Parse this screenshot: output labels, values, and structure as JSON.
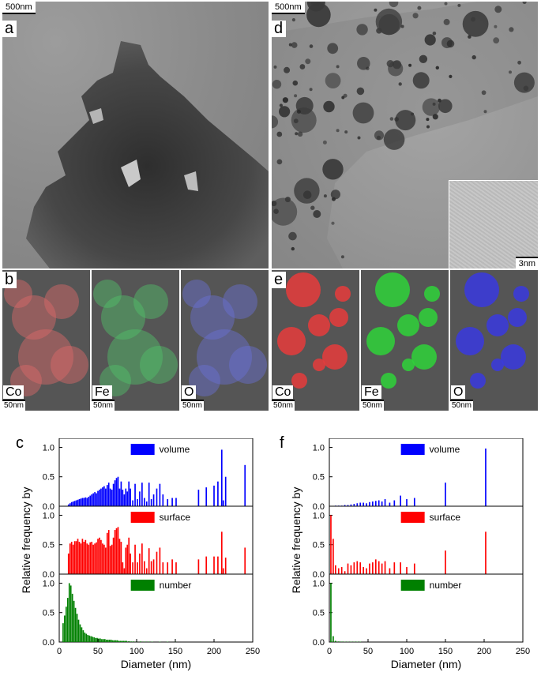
{
  "panels": {
    "a": {
      "letter": "a",
      "scale": "500nm"
    },
    "d": {
      "letter": "d",
      "scale": "500nm",
      "inset_scale": "3nm"
    },
    "b": {
      "letter": "b",
      "maps": [
        {
          "element": "Co",
          "scale": "50nm",
          "color": "#e06a6a"
        },
        {
          "element": "Fe",
          "scale": "50nm",
          "color": "#52c46a"
        },
        {
          "element": "O",
          "scale": "50nm",
          "color": "#6a72d8"
        }
      ]
    },
    "e": {
      "letter": "e",
      "maps": [
        {
          "element": "Co",
          "scale": "50nm",
          "color": "#e83c3c"
        },
        {
          "element": "Fe",
          "scale": "50nm",
          "color": "#2fd43a"
        },
        {
          "element": "O",
          "scale": "50nm",
          "color": "#3a3ae0"
        }
      ]
    },
    "c": {
      "letter": "c"
    },
    "f": {
      "letter": "f"
    }
  },
  "chart_data": [
    {
      "id": "c",
      "type": "bar",
      "xlabel": "Diameter (nm)",
      "ylabel": "Relative frequency by",
      "xlim": [
        0,
        250
      ],
      "xticks": [
        0,
        50,
        100,
        150,
        200,
        250
      ],
      "ylim": [
        0,
        1.1
      ],
      "yticks": [
        "0.0",
        "0.5",
        "1.0"
      ],
      "series": [
        {
          "name": "volume",
          "color": "#0000ff",
          "x": [
            12,
            14,
            16,
            18,
            20,
            22,
            24,
            26,
            28,
            30,
            32,
            34,
            36,
            38,
            40,
            42,
            44,
            46,
            48,
            50,
            52,
            54,
            56,
            58,
            60,
            62,
            64,
            66,
            68,
            70,
            72,
            74,
            76,
            78,
            80,
            82,
            84,
            86,
            88,
            90,
            92,
            95,
            98,
            101,
            104,
            107,
            110,
            113,
            116,
            119,
            122,
            126,
            130,
            134,
            140,
            146,
            151,
            180,
            190,
            200,
            205,
            210,
            212,
            215,
            240
          ],
          "values": [
            0.03,
            0.05,
            0.07,
            0.08,
            0.09,
            0.1,
            0.11,
            0.12,
            0.13,
            0.14,
            0.14,
            0.15,
            0.14,
            0.16,
            0.18,
            0.2,
            0.22,
            0.24,
            0.22,
            0.26,
            0.28,
            0.3,
            0.32,
            0.34,
            0.3,
            0.36,
            0.4,
            0.3,
            0.28,
            0.38,
            0.44,
            0.48,
            0.5,
            0.3,
            0.42,
            0.28,
            0.2,
            0.3,
            0.25,
            0.42,
            0.3,
            0.1,
            0.38,
            0.12,
            0.25,
            0.4,
            0.14,
            0.08,
            0.4,
            0.12,
            0.2,
            0.3,
            0.38,
            0.2,
            0.12,
            0.14,
            0.14,
            0.28,
            0.32,
            0.35,
            0.42,
            0.96,
            0.1,
            0.5,
            0.7
          ]
        },
        {
          "name": "surface",
          "color": "#ff0000",
          "x": [
            12,
            14,
            16,
            18,
            20,
            22,
            24,
            26,
            28,
            30,
            32,
            34,
            36,
            38,
            40,
            42,
            44,
            46,
            48,
            50,
            52,
            54,
            56,
            58,
            60,
            62,
            64,
            66,
            68,
            70,
            72,
            74,
            76,
            78,
            80,
            82,
            84,
            86,
            88,
            90,
            92,
            95,
            98,
            101,
            104,
            107,
            110,
            113,
            116,
            119,
            122,
            126,
            130,
            134,
            140,
            146,
            151,
            180,
            190,
            200,
            205,
            210,
            212,
            215,
            240
          ],
          "values": [
            0.35,
            0.52,
            0.55,
            0.5,
            0.56,
            0.56,
            0.6,
            0.55,
            0.52,
            0.6,
            0.55,
            0.58,
            0.52,
            0.5,
            0.54,
            0.55,
            0.5,
            0.52,
            0.54,
            0.6,
            0.62,
            0.58,
            0.52,
            0.5,
            0.45,
            0.7,
            0.75,
            0.48,
            0.5,
            0.62,
            0.75,
            0.78,
            0.8,
            0.6,
            0.55,
            0.2,
            0.1,
            0.45,
            0.5,
            0.62,
            0.35,
            0.2,
            0.5,
            0.2,
            0.35,
            0.52,
            0.22,
            0.1,
            0.44,
            0.22,
            0.25,
            0.38,
            0.45,
            0.2,
            0.2,
            0.25,
            0.2,
            0.25,
            0.3,
            0.3,
            0.3,
            0.72,
            0.1,
            0.28,
            0.45
          ]
        },
        {
          "name": "number",
          "color": "#008000",
          "x": [
            5,
            7,
            9,
            11,
            13,
            15,
            17,
            19,
            21,
            23,
            25,
            27,
            29,
            31,
            33,
            35,
            37,
            39,
            41,
            43,
            45,
            47,
            49,
            51,
            53,
            55,
            57,
            59,
            61,
            63,
            65,
            67,
            69,
            71,
            73,
            75,
            77,
            79,
            81,
            83,
            85,
            87,
            90,
            93,
            96,
            100,
            105,
            110,
            115,
            120,
            130,
            140,
            150
          ],
          "values": [
            0.32,
            0.45,
            0.6,
            0.75,
            1.0,
            0.96,
            0.82,
            0.7,
            0.58,
            0.48,
            0.38,
            0.3,
            0.25,
            0.2,
            0.16,
            0.14,
            0.12,
            0.11,
            0.1,
            0.09,
            0.08,
            0.07,
            0.07,
            0.06,
            0.06,
            0.05,
            0.05,
            0.05,
            0.04,
            0.04,
            0.04,
            0.04,
            0.03,
            0.03,
            0.03,
            0.03,
            0.02,
            0.02,
            0.02,
            0.02,
            0.02,
            0.02,
            0.015,
            0.01,
            0.01,
            0.01,
            0.01,
            0.008,
            0.008,
            0.006,
            0.005,
            0.004,
            0.003
          ]
        }
      ]
    },
    {
      "id": "f",
      "type": "bar",
      "xlabel": "Diameter (nm)",
      "ylabel": "Relative frequency by",
      "xlim": [
        0,
        250
      ],
      "xticks": [
        0,
        50,
        100,
        150,
        200,
        250
      ],
      "ylim": [
        0,
        1.1
      ],
      "yticks": [
        "0.0",
        "0.5",
        "1.0"
      ],
      "series": [
        {
          "name": "volume",
          "color": "#0000ff",
          "x": [
            2,
            5,
            8,
            12,
            16,
            20,
            24,
            28,
            32,
            36,
            40,
            44,
            48,
            52,
            56,
            60,
            64,
            68,
            72,
            78,
            84,
            92,
            100,
            110,
            150,
            202
          ],
          "values": [
            0.005,
            0.005,
            0.01,
            0.01,
            0.01,
            0.02,
            0.02,
            0.03,
            0.04,
            0.05,
            0.06,
            0.06,
            0.05,
            0.07,
            0.08,
            0.09,
            0.1,
            0.08,
            0.12,
            0.06,
            0.1,
            0.18,
            0.12,
            0.14,
            0.4,
            0.98
          ]
        },
        {
          "name": "surface",
          "color": "#ff0000",
          "x": [
            2,
            5,
            8,
            12,
            16,
            20,
            24,
            28,
            32,
            36,
            40,
            44,
            48,
            52,
            56,
            60,
            64,
            68,
            72,
            78,
            84,
            92,
            100,
            110,
            150,
            202
          ],
          "values": [
            1.0,
            0.6,
            0.15,
            0.1,
            0.12,
            0.05,
            0.18,
            0.15,
            0.2,
            0.22,
            0.2,
            0.12,
            0.1,
            0.18,
            0.2,
            0.25,
            0.22,
            0.18,
            0.22,
            0.1,
            0.2,
            0.2,
            0.12,
            0.18,
            0.4,
            0.72
          ]
        },
        {
          "name": "number",
          "color": "#008000",
          "x": [
            2,
            5,
            8,
            12,
            16,
            20,
            24,
            28,
            32,
            36,
            40
          ],
          "values": [
            1.0,
            0.1,
            0.02,
            0.01,
            0.008,
            0.006,
            0.005,
            0.004,
            0.003,
            0.003,
            0.002
          ]
        }
      ]
    }
  ]
}
